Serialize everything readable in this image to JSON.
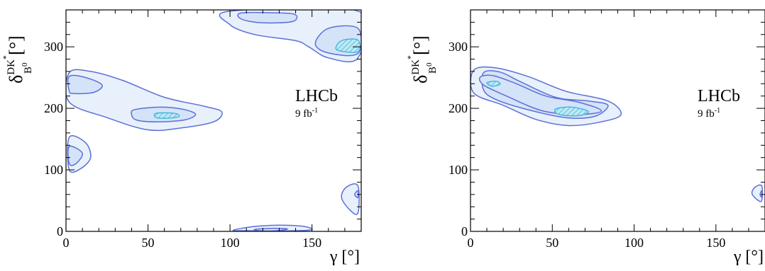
{
  "figure": {
    "panels": [
      {
        "brand": "LHCb",
        "lumi": {
          "value": "9 fb",
          "exponent": "-1"
        }
      },
      {
        "brand": "LHCb",
        "lumi": {
          "value": "9 fb",
          "exponent": "-1"
        }
      }
    ]
  },
  "chart_data": [
    {
      "type": "contour",
      "xlabel": "γ [°]",
      "ylabel": {
        "symbol": "δ",
        "superscript": "DK",
        "superscript_star": "*",
        "subscript": "B",
        "subscript_sup": "0",
        "unit": "[°]"
      },
      "xlim": [
        0,
        180
      ],
      "ylim": [
        0,
        360
      ],
      "xticks": [
        0,
        50,
        100,
        150
      ],
      "yticks": [
        0,
        100,
        200,
        300
      ],
      "colors": {
        "outer_fill": "#e8f0fb",
        "inner_fill": "#d4e3f7",
        "contour_line": "#5c6fd8",
        "best_fit_hatch": "#36b3dc"
      },
      "regions": [
        {
          "name": "upper-left band",
          "outer": [
            [
              2,
              258
            ],
            [
              15,
              260
            ],
            [
              35,
              245
            ],
            [
              60,
              218
            ],
            [
              85,
              203
            ],
            [
              95,
              194
            ],
            [
              90,
              178
            ],
            [
              70,
              168
            ],
            [
              50,
              165
            ],
            [
              25,
              185
            ],
            [
              2,
              210
            ]
          ],
          "inner": [
            [
              2,
              252
            ],
            [
              12,
              250
            ],
            [
              22,
              238
            ],
            [
              17,
              226
            ],
            [
              5,
              224
            ],
            [
              2,
              228
            ]
          ],
          "inner2": [
            [
              42,
              198
            ],
            [
              58,
              202
            ],
            [
              72,
              198
            ],
            [
              79,
              190
            ],
            [
              72,
              181
            ],
            [
              55,
              178
            ],
            [
              43,
              181
            ],
            [
              40,
              190
            ]
          ],
          "best_fit": [
            [
              55,
              192
            ],
            [
              66,
              192
            ],
            [
              69,
              187
            ],
            [
              63,
              184
            ],
            [
              55,
              185
            ]
          ]
        },
        {
          "name": "left edge",
          "outer": [
            [
              2,
              153
            ],
            [
              12,
              144
            ],
            [
              15,
              120
            ],
            [
              9,
              102
            ],
            [
              2,
              100
            ]
          ],
          "inner": [
            [
              2,
              138
            ],
            [
              10,
              127
            ],
            [
              6,
              110
            ],
            [
              2,
              110
            ]
          ]
        },
        {
          "name": "upper-right band",
          "outer": [
            [
              100,
              358
            ],
            [
              178,
              358
            ],
            [
              178,
              282
            ],
            [
              160,
              282
            ],
            [
              148,
              300
            ],
            [
              140,
              310
            ],
            [
              115,
              320
            ],
            [
              100,
              336
            ]
          ],
          "inner": [
            [
              107,
              355
            ],
            [
              130,
              355
            ],
            [
              140,
              352
            ],
            [
              138,
              341
            ],
            [
              120,
              339
            ],
            [
              107,
              345
            ]
          ],
          "inner2": [
            [
              178,
              330
            ],
            [
              160,
              330
            ],
            [
              152,
              305
            ],
            [
              160,
              290
            ],
            [
              178,
              289
            ]
          ],
          "best_fit": [
            [
              169,
              311
            ],
            [
              178,
              311
            ],
            [
              178,
              292
            ],
            [
              166,
              294
            ],
            [
              165,
              302
            ]
          ]
        },
        {
          "name": "right edge",
          "outer": [
            [
              178,
              74
            ],
            [
              171,
              72
            ],
            [
              168,
              55
            ],
            [
              173,
              35
            ],
            [
              178,
              30
            ]
          ],
          "inner": [
            [
              178,
              66
            ],
            [
              176,
              60
            ],
            [
              178,
              55
            ]
          ]
        },
        {
          "name": "bottom band",
          "outer": [
            [
              102,
              2
            ],
            [
              115,
              8
            ],
            [
              130,
              10
            ],
            [
              145,
              8
            ],
            [
              150,
              3
            ],
            [
              140,
              1
            ],
            [
              110,
              1
            ]
          ],
          "inner": [
            [
              115,
              3
            ],
            [
              125,
              5
            ],
            [
              135,
              4
            ],
            [
              128,
              1
            ],
            [
              118,
              1
            ]
          ]
        }
      ]
    },
    {
      "type": "contour",
      "xlabel": "γ [°]",
      "ylabel": {
        "symbol": "δ",
        "superscript": "DK",
        "superscript_star": "*",
        "subscript": "B",
        "subscript_sup": "0",
        "unit": "[°]"
      },
      "xlim": [
        0,
        180
      ],
      "ylim": [
        0,
        360
      ],
      "xticks": [
        0,
        50,
        100,
        150
      ],
      "yticks": [
        0,
        100,
        200,
        300
      ],
      "colors": {
        "outer_fill": "#e8f0fb",
        "inner_fill": "#d4e3f7",
        "contour_line": "#5c6fd8",
        "best_fit_hatch": "#36b3dc"
      },
      "regions": [
        {
          "name": "diagonal band",
          "outer": [
            [
              2,
              262
            ],
            [
              15,
              266
            ],
            [
              35,
              252
            ],
            [
              58,
              228
            ],
            [
              84,
              212
            ],
            [
              92,
              190
            ],
            [
              80,
              178
            ],
            [
              60,
              172
            ],
            [
              40,
              182
            ],
            [
              20,
              205
            ],
            [
              2,
              225
            ]
          ],
          "inner": [
            [
              8,
              258
            ],
            [
              18,
              259
            ],
            [
              30,
              244
            ],
            [
              52,
              218
            ],
            [
              72,
              212
            ],
            [
              84,
              205
            ],
            [
              76,
              187
            ],
            [
              58,
              185
            ],
            [
              32,
              200
            ],
            [
              15,
              215
            ],
            [
              8,
              230
            ]
          ],
          "inner2": [
            [
              6,
              251
            ],
            [
              14,
              253
            ],
            [
              28,
              240
            ],
            [
              46,
              220
            ],
            [
              66,
              210
            ],
            [
              80,
              196
            ],
            [
              66,
              190
            ],
            [
              44,
              196
            ],
            [
              22,
              220
            ],
            [
              8,
              238
            ]
          ],
          "best_fit_1": [
            [
              10,
              242
            ],
            [
              16,
              244
            ],
            [
              18,
              239
            ],
            [
              13,
              236
            ]
          ],
          "best_fit_2": [
            [
              52,
              199
            ],
            [
              62,
              202
            ],
            [
              72,
              195
            ],
            [
              66,
              188
            ],
            [
              54,
              190
            ]
          ]
        },
        {
          "name": "right edge",
          "outer": [
            [
              178,
              74
            ],
            [
              174,
              72
            ],
            [
              172,
              62
            ],
            [
              175,
              52
            ],
            [
              178,
              50
            ]
          ],
          "inner": [
            [
              178,
              66
            ],
            [
              177,
              60
            ],
            [
              178,
              56
            ]
          ]
        }
      ]
    }
  ]
}
